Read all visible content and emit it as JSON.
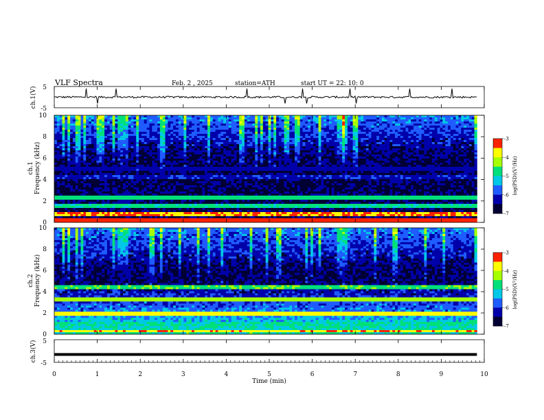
{
  "header": {
    "title": "VLF  Spectra",
    "date": "Feb. 2  , 2025",
    "station": "station=ATH",
    "start": "start  UT  =   22: 10: 0"
  },
  "colors": {
    "spectrogram_scale": [
      "#000033",
      "#0000aa",
      "#1f5cff",
      "#00c8e6",
      "#00e07a",
      "#a6ff00",
      "#ffff00",
      "#ff2200",
      "#ffffff"
    ]
  },
  "chart_data": [
    {
      "id": "ch1_waveform",
      "type": "line",
      "ylabel": "ch.1(V)",
      "ylim": [
        -5,
        5
      ],
      "yticks": [
        "5",
        "-5"
      ],
      "xlim": [
        0,
        10
      ],
      "series": [
        {
          "trace": "noisy waveform, baseline about 0 V, sparse spikes to about +4 V and -3 V"
        }
      ]
    },
    {
      "id": "ch1_spectrogram",
      "type": "heatmap",
      "ylabel_channel": "ch.1",
      "ylabel": "Frequency  (kHz)",
      "ylim": [
        0,
        10
      ],
      "yticks": [
        "0",
        "2",
        "4",
        "6",
        "8",
        "10"
      ],
      "xlim": [
        0,
        10
      ],
      "colorbar": {
        "label": "log(PSD)(V²/Hz)",
        "range": [
          -7,
          -3
        ],
        "ticks": [
          "-3",
          "-4",
          "-5",
          "-6",
          "-7"
        ]
      },
      "bands_khz": [
        {
          "freq": 0.2,
          "level": -3.2
        },
        {
          "freq": 0.7,
          "level": -3.5
        },
        {
          "freq": 1.6,
          "level": -4.9
        },
        {
          "freq": 2.3,
          "level": -4.7
        },
        {
          "freq": 4.3,
          "level": -6.1
        },
        {
          "freq": 5.0,
          "level": -6.2
        }
      ],
      "activity_enhancements_min": [
        1.6,
        6.7
      ]
    },
    {
      "id": "ch2_spectrogram",
      "type": "heatmap",
      "ylabel_channel": "ch.2",
      "ylabel": "Frequency  (kHz)",
      "ylim": [
        0,
        10
      ],
      "yticks": [
        "0",
        "2",
        "4",
        "6",
        "8",
        "10"
      ],
      "xlim": [
        0,
        10
      ],
      "colorbar": {
        "label": "log(PSD)(V²/Hz)",
        "range": [
          -7,
          -3
        ],
        "ticks": [
          "-3",
          "-4",
          "-5",
          "-6",
          "-7"
        ]
      },
      "bands_khz": [
        {
          "freq": 0.3,
          "level": -3.6
        },
        {
          "freq": 1.0,
          "level": -5.0
        },
        {
          "freq": 2.0,
          "level": -3.8
        },
        {
          "freq": 3.3,
          "level": -4.3
        },
        {
          "freq": 4.5,
          "level": -4.6
        }
      ],
      "activity_enhancements_min": [
        1.6,
        6.7
      ]
    },
    {
      "id": "ch3_waveform",
      "type": "line",
      "ylabel": "ch.3(V)",
      "ylim": [
        -5,
        5
      ],
      "yticks": [
        "5",
        "-5"
      ],
      "xlim": [
        0,
        10
      ],
      "series": [
        {
          "trace": "flat line at about -1.5 V"
        }
      ]
    }
  ],
  "xaxis": {
    "label": "Time  (min)",
    "ticks": [
      "0",
      "1",
      "2",
      "3",
      "4",
      "5",
      "6",
      "7",
      "8",
      "9",
      "10"
    ],
    "range": [
      0,
      10
    ],
    "data_end": 9.83
  }
}
